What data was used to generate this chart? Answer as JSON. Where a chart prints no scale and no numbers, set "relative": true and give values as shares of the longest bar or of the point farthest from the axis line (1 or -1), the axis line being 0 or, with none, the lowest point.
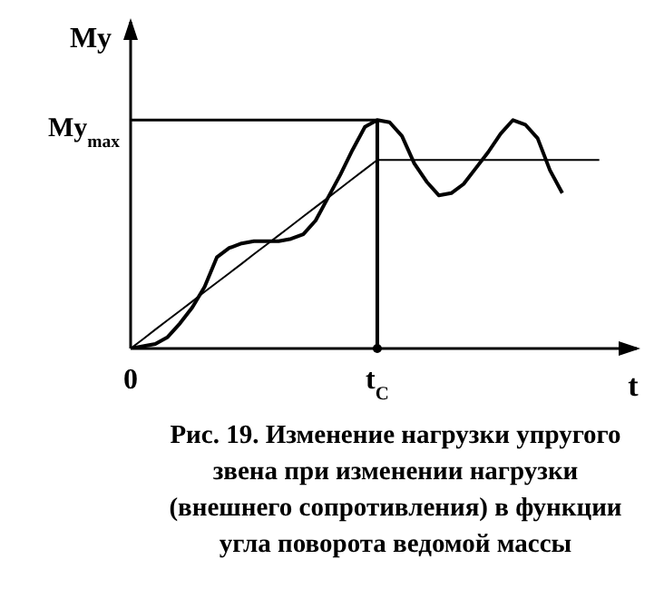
{
  "chart_data": {
    "type": "line",
    "title": "Рис. 19. Изменение нагрузки упругого звена при изменении нагрузки (внешнего сопротивления) в функции угла поворота ведомой массы",
    "xlabel": "t",
    "ylabel": "My",
    "relative": true,
    "categories": [
      "0",
      null,
      null,
      null,
      null,
      null,
      null,
      null,
      null,
      null,
      null,
      null,
      null,
      null,
      null,
      null,
      null,
      null,
      null,
      null,
      "t$_{C}$",
      null,
      null,
      null,
      null,
      null,
      null,
      null,
      null,
      null,
      null,
      null,
      null,
      null,
      null,
      null,
      null,
      null,
      null
    ],
    "series": [
      {
        "color": "#000000",
        "values": [
          0,
          0.041,
          0.083,
          0.124,
          0.165,
          0.206,
          0.248,
          0.289,
          0.33,
          0.371,
          0.413,
          0.454,
          0.495,
          0.536,
          0.578,
          0.619,
          0.66,
          0.701,
          0.743,
          0.784,
          0.825,
          0.825,
          0.825,
          0.825,
          0.825,
          0.825,
          0.825,
          0.825,
          0.825,
          0.825,
          0.825,
          0.825,
          0.825,
          0.825,
          0.825,
          0.825,
          0.825,
          0.825,
          0.825
        ]
      },
      {
        "color": "#000000",
        "values": [
          0,
          0.01,
          0.02,
          0.05,
          0.11,
          0.18,
          0.27,
          0.4,
          0.44,
          0.46,
          0.47,
          0.47,
          0.47,
          0.48,
          0.5,
          0.56,
          0.66,
          0.76,
          0.87,
          0.97,
          1,
          0.99,
          0.93,
          0.81,
          0.73,
          0.67,
          0.68,
          0.72,
          0.79,
          0.86,
          0.94,
          1,
          0.98,
          0.92,
          0.78,
          0.68,
          null,
          null,
          null
        ]
      }
    ],
    "ref_lines": [
      {
        "axis": "y",
        "value": 1,
        "label": "My$_{max}$"
      },
      {
        "axis": "x",
        "value": "t$_{C}$"
      }
    ],
    "grid": false,
    "marker": "none",
    "line_style": "solid"
  }
}
